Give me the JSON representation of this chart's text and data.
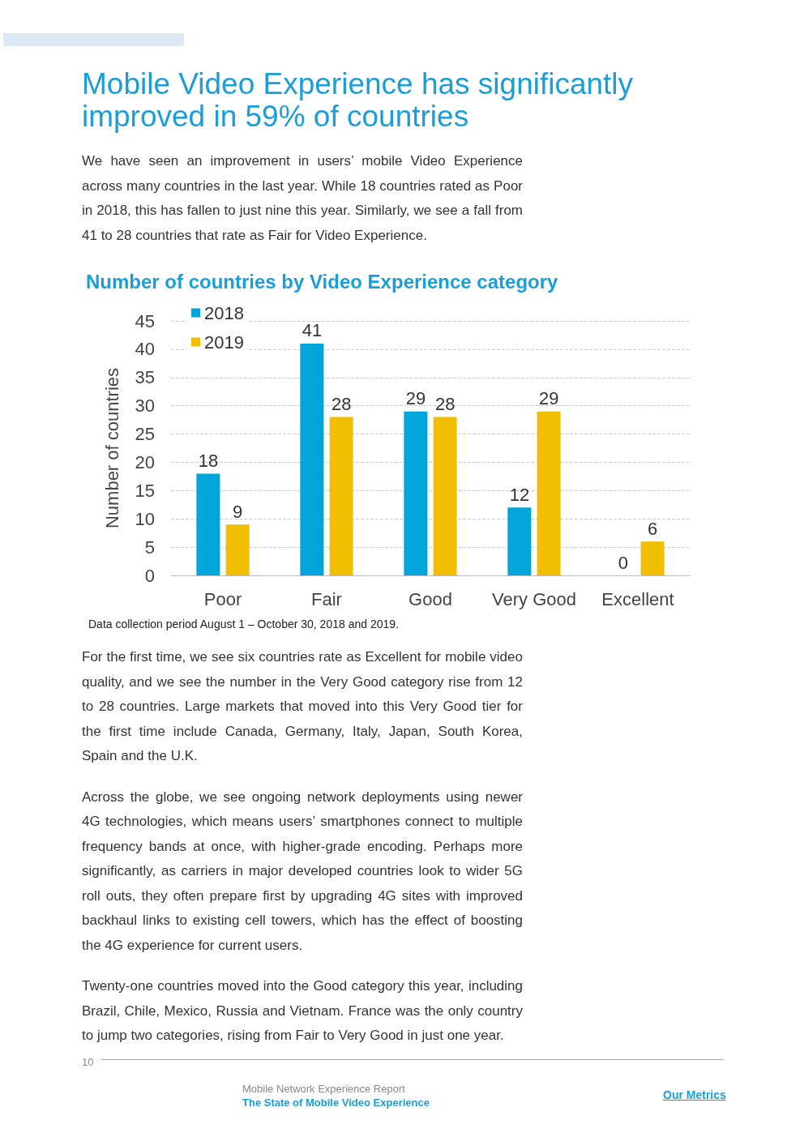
{
  "chart_data": {
    "type": "bar",
    "title": "Mobile Video Experience has significantly improved in 59% of countries",
    "subtitle": "Number of countries by Video Experience category",
    "ylabel": "Number of countries",
    "categories": [
      "Poor",
      "Fair",
      "Good",
      "Very Good",
      "Excellent"
    ],
    "series": [
      {
        "name": "2018",
        "color": "#00a5dc",
        "values": [
          18,
          41,
          29,
          12,
          0
        ]
      },
      {
        "name": "2019",
        "color": "#f2be00",
        "values": [
          9,
          28,
          28,
          29,
          6
        ]
      }
    ],
    "ylim": [
      0,
      45
    ],
    "yticks": [
      0,
      5,
      10,
      15,
      20,
      25,
      30,
      35,
      40,
      45
    ],
    "grid": "y",
    "legend": "top left",
    "data_labels": true,
    "annotations": [
      "We have seen an improvement in users’ mobile Video Experience across many countries in the last year. While 18 countries rated as Poor in 2018, this has fallen to just nine this year. Similarly, we see a fall from 41 to 28 countries that rate as Fair for Video Experience.",
      "Data collection period August 1 – October 30, 2018 and 2019.",
      "For the first time, we see six countries rate as Excellent for mobile video quality, and we see the number in the Very Good category rise from 12 to 28 countries. Large markets that moved into this Very Good tier for the first time include Canada, Germany, Italy, Japan, South Korea, Spain and the U.K.",
      "Across the globe, we see ongoing network deployments using newer 4G technologies, which means users’ smartphones connect to multiple frequency bands at once, with higher-grade encoding. Perhaps more significantly, as carriers in major developed countries look to wider 5G roll outs, they often prepare first by upgrading 4G sites with improved backhaul links to existing cell towers, which has the effect of boosting the 4G experience for current users.",
      "Twenty-one countries moved into the Good category this year, including Brazil, Chile, Mexico, Russia and Vietnam. France was the only country to jump two categories, rising from Fair to Very Good in just one year.",
      "10",
      "Mobile Network Experience Report",
      "The State of Mobile Video Experience",
      "Our Metrics"
    ]
  }
}
